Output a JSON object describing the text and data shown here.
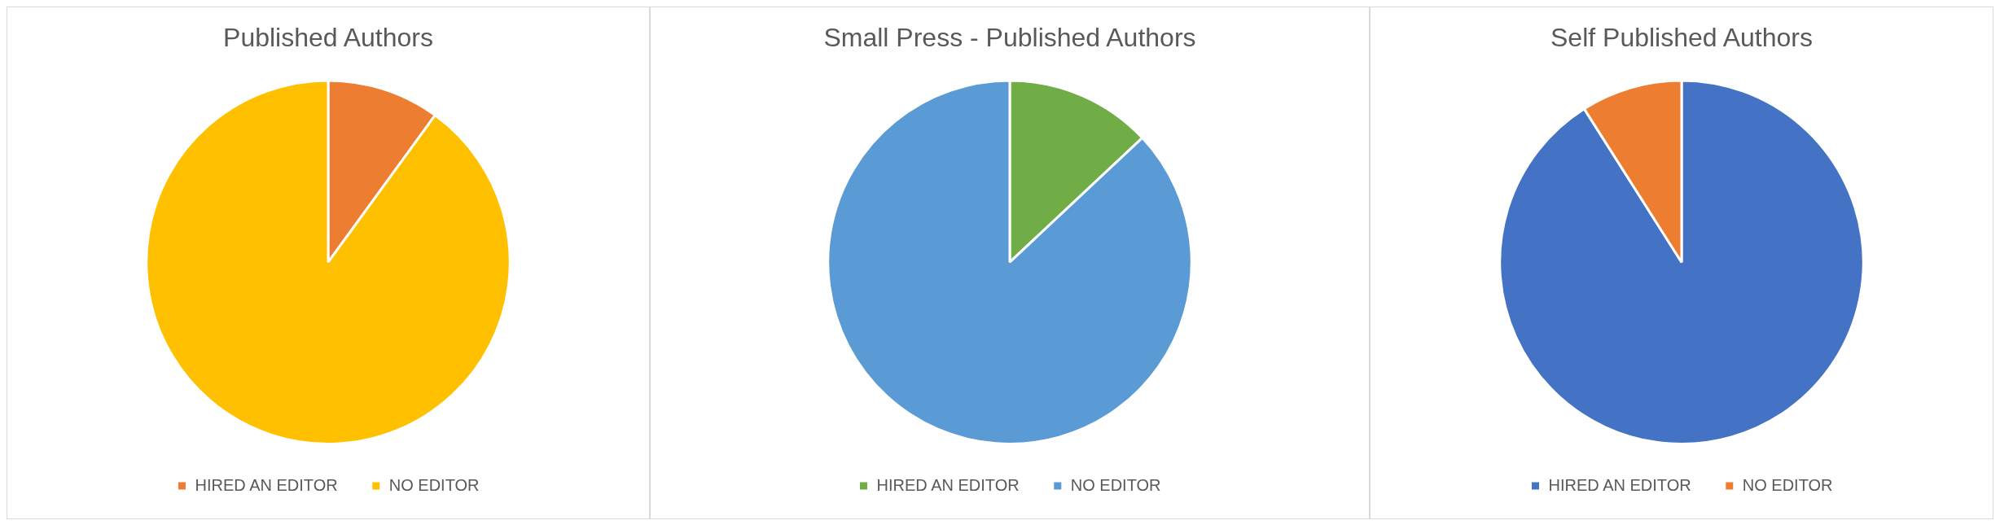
{
  "chart_data": [
    {
      "type": "pie",
      "title": "Published Authors",
      "categories": [
        "HIRED AN EDITOR",
        "NO EDITOR"
      ],
      "values": [
        10,
        90
      ],
      "colors": [
        "#ed7d31",
        "#ffc000"
      ],
      "legend": "bottom"
    },
    {
      "type": "pie",
      "title": "Small Press - Published Authors",
      "categories": [
        "HIRED AN EDITOR",
        "NO EDITOR"
      ],
      "values": [
        13,
        87
      ],
      "colors": [
        "#70ad47",
        "#5b9bd5"
      ],
      "legend": "bottom"
    },
    {
      "type": "pie",
      "title": "Self Published Authors",
      "categories": [
        "HIRED AN EDITOR",
        "NO EDITOR"
      ],
      "values": [
        91,
        9
      ],
      "colors": [
        "#4472c4",
        "#ed7d31"
      ],
      "legend": "bottom"
    }
  ]
}
